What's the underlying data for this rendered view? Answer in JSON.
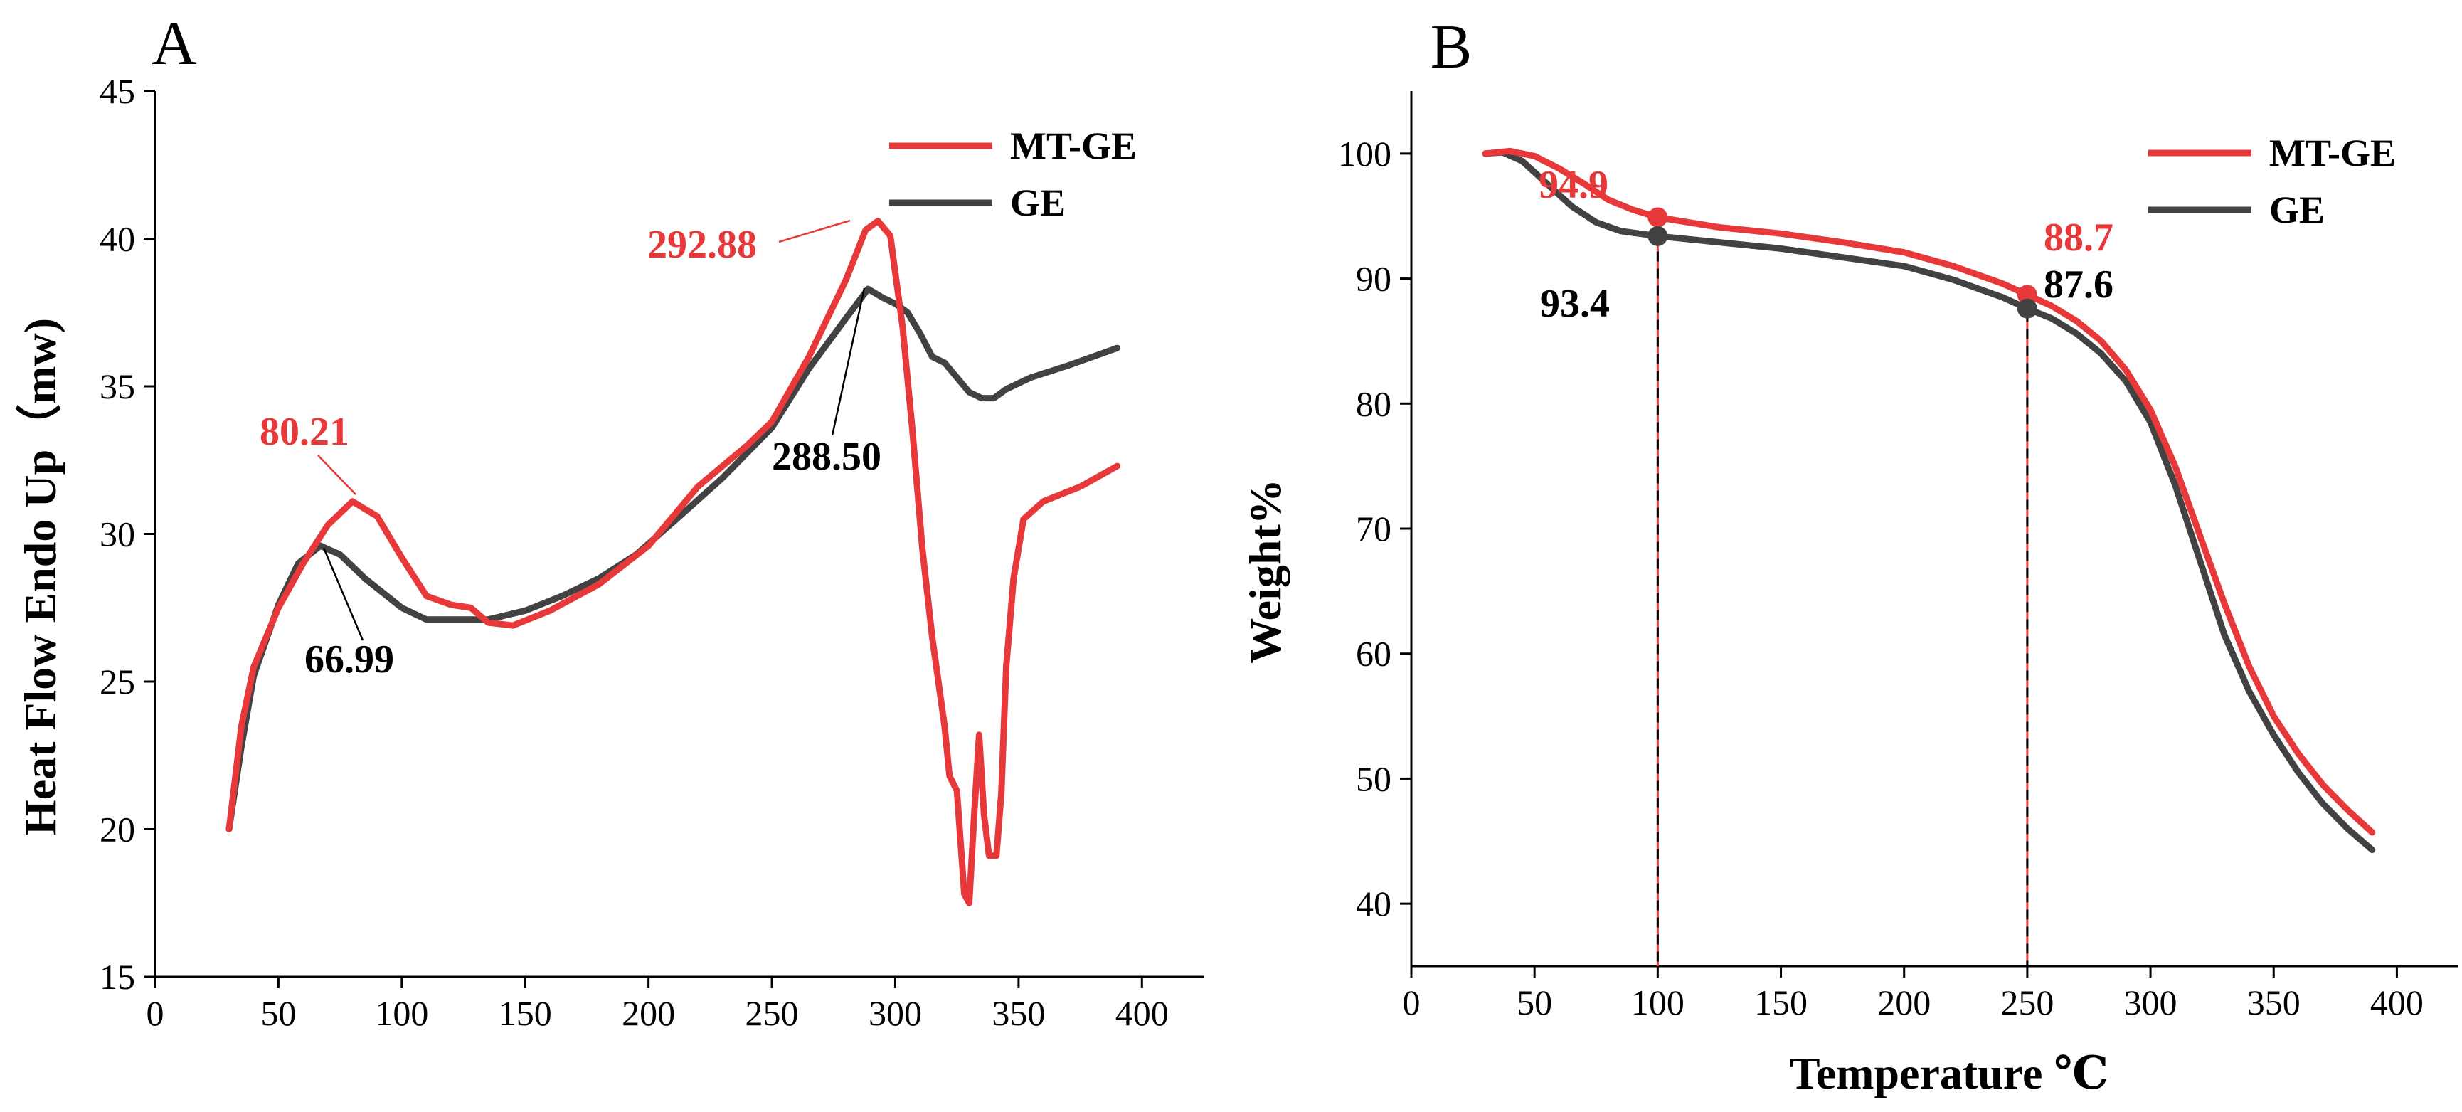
{
  "chart_data": [
    {
      "type": "line",
      "panel": "A",
      "ylabel": "Heat Flow Endo Up（mw)",
      "xlabel": "",
      "xlim": [
        0,
        425
      ],
      "ylim": [
        15,
        45
      ],
      "xticks": [
        0,
        50,
        100,
        150,
        200,
        250,
        300,
        350,
        400
      ],
      "yticks": [
        15,
        20,
        25,
        30,
        35,
        40,
        45
      ],
      "legend_placement": "top-right",
      "series": [
        {
          "name": "MT-GE",
          "color": "#e8393a",
          "points": [
            [
              30,
              20
            ],
            [
              35,
              23.5
            ],
            [
              40,
              25.5
            ],
            [
              50,
              27.5
            ],
            [
              60,
              29
            ],
            [
              70,
              30.3
            ],
            [
              80,
              31.1
            ],
            [
              90,
              30.6
            ],
            [
              100,
              29.2
            ],
            [
              110,
              27.9
            ],
            [
              120,
              27.6
            ],
            [
              128,
              27.5
            ],
            [
              135,
              27.0
            ],
            [
              145,
              26.9
            ],
            [
              160,
              27.4
            ],
            [
              180,
              28.3
            ],
            [
              200,
              29.6
            ],
            [
              220,
              31.6
            ],
            [
              240,
              33.0
            ],
            [
              250,
              33.8
            ],
            [
              265,
              36.0
            ],
            [
              280,
              38.6
            ],
            [
              288,
              40.3
            ],
            [
              293,
              40.6
            ],
            [
              298,
              40.1
            ],
            [
              303,
              37.0
            ],
            [
              307,
              33.5
            ],
            [
              311,
              29.5
            ],
            [
              315,
              26.5
            ],
            [
              320,
              23.5
            ],
            [
              322,
              21.8
            ],
            [
              325,
              21.3
            ],
            [
              328,
              17.8
            ],
            [
              330,
              17.5
            ],
            [
              332,
              20.5
            ],
            [
              334,
              23.2
            ],
            [
              336,
              20.5
            ],
            [
              338,
              19.1
            ],
            [
              341,
              19.1
            ],
            [
              343,
              21.2
            ],
            [
              345,
              25.5
            ],
            [
              348,
              28.5
            ],
            [
              352,
              30.5
            ],
            [
              360,
              31.1
            ],
            [
              375,
              31.6
            ],
            [
              390,
              32.3
            ]
          ]
        },
        {
          "name": "GE",
          "color": "#424242",
          "points": [
            [
              30,
              20
            ],
            [
              35,
              22.8
            ],
            [
              40,
              25.2
            ],
            [
              50,
              27.6
            ],
            [
              58,
              29.0
            ],
            [
              67,
              29.6
            ],
            [
              75,
              29.3
            ],
            [
              85,
              28.5
            ],
            [
              100,
              27.5
            ],
            [
              110,
              27.1
            ],
            [
              120,
              27.1
            ],
            [
              135,
              27.1
            ],
            [
              150,
              27.4
            ],
            [
              165,
              27.9
            ],
            [
              180,
              28.5
            ],
            [
              195,
              29.3
            ],
            [
              210,
              30.4
            ],
            [
              230,
              31.9
            ],
            [
              250,
              33.6
            ],
            [
              265,
              35.6
            ],
            [
              280,
              37.3
            ],
            [
              289,
              38.3
            ],
            [
              295,
              38.0
            ],
            [
              300,
              37.8
            ],
            [
              305,
              37.5
            ],
            [
              310,
              36.8
            ],
            [
              315,
              36.0
            ],
            [
              320,
              35.8
            ],
            [
              325,
              35.3
            ],
            [
              330,
              34.8
            ],
            [
              335,
              34.6
            ],
            [
              340,
              34.6
            ],
            [
              345,
              34.9
            ],
            [
              355,
              35.3
            ],
            [
              370,
              35.7
            ],
            [
              390,
              36.3
            ]
          ]
        }
      ],
      "annotations": [
        {
          "text": "80.21",
          "x": 80.21,
          "y": 31.1,
          "color": "#e8393a"
        },
        {
          "text": "66.99",
          "x": 66.99,
          "y": 29.6,
          "color": "#000000"
        },
        {
          "text": "292.88",
          "x": 292.88,
          "y": 40.6,
          "color": "#e8393a"
        },
        {
          "text": "288.50",
          "x": 288.5,
          "y": 38.3,
          "color": "#000000"
        }
      ]
    },
    {
      "type": "line",
      "panel": "B",
      "ylabel": "Weight%",
      "xlabel": "Temperature ℃",
      "xlim": [
        0,
        425
      ],
      "ylim": [
        35,
        105
      ],
      "xticks": [
        0,
        50,
        100,
        150,
        200,
        250,
        300,
        350,
        400
      ],
      "yticks": [
        40,
        50,
        60,
        70,
        80,
        90,
        100
      ],
      "legend_placement": "top-right",
      "series": [
        {
          "name": "MT-GE",
          "color": "#e8393a",
          "points": [
            [
              30,
              100
            ],
            [
              40,
              100.2
            ],
            [
              50,
              99.8
            ],
            [
              60,
              98.8
            ],
            [
              70,
              97.6
            ],
            [
              80,
              96.3
            ],
            [
              90,
              95.5
            ],
            [
              100,
              94.9
            ],
            [
              125,
              94.1
            ],
            [
              150,
              93.6
            ],
            [
              175,
              92.9
            ],
            [
              200,
              92.1
            ],
            [
              220,
              91.0
            ],
            [
              240,
              89.6
            ],
            [
              250,
              88.7
            ],
            [
              260,
              87.8
            ],
            [
              270,
              86.6
            ],
            [
              280,
              85.0
            ],
            [
              290,
              82.7
            ],
            [
              300,
              79.5
            ],
            [
              310,
              75.0
            ],
            [
              320,
              69.5
            ],
            [
              330,
              64.0
            ],
            [
              340,
              59.0
            ],
            [
              350,
              55.0
            ],
            [
              360,
              52.0
            ],
            [
              370,
              49.5
            ],
            [
              380,
              47.5
            ],
            [
              390,
              45.7
            ]
          ]
        },
        {
          "name": "GE",
          "color": "#424242",
          "points": [
            [
              30,
              100
            ],
            [
              37,
              100.1
            ],
            [
              45,
              99.4
            ],
            [
              55,
              97.6
            ],
            [
              65,
              95.8
            ],
            [
              75,
              94.5
            ],
            [
              85,
              93.8
            ],
            [
              100,
              93.4
            ],
            [
              125,
              92.9
            ],
            [
              150,
              92.4
            ],
            [
              175,
              91.7
            ],
            [
              200,
              91.0
            ],
            [
              220,
              89.9
            ],
            [
              240,
              88.5
            ],
            [
              250,
              87.6
            ],
            [
              260,
              86.8
            ],
            [
              270,
              85.6
            ],
            [
              280,
              84.0
            ],
            [
              290,
              81.8
            ],
            [
              300,
              78.5
            ],
            [
              310,
              73.5
            ],
            [
              320,
              67.5
            ],
            [
              330,
              61.5
            ],
            [
              340,
              57.0
            ],
            [
              350,
              53.5
            ],
            [
              360,
              50.5
            ],
            [
              370,
              48.0
            ],
            [
              380,
              46.0
            ],
            [
              390,
              44.3
            ]
          ]
        }
      ],
      "markers": [
        {
          "x": 100,
          "y": 94.9,
          "color": "#e8393a"
        },
        {
          "x": 100,
          "y": 93.4,
          "color": "#424242"
        },
        {
          "x": 250,
          "y": 88.7,
          "color": "#e8393a"
        },
        {
          "x": 250,
          "y": 87.6,
          "color": "#424242"
        }
      ],
      "vlines": [
        100,
        250
      ],
      "annotations": [
        {
          "text": "94.9",
          "x": 100,
          "y": 94.9,
          "color": "#e8393a"
        },
        {
          "text": "93.4",
          "x": 100,
          "y": 93.4,
          "color": "#000000"
        },
        {
          "text": "88.7",
          "x": 250,
          "y": 88.7,
          "color": "#e8393a"
        },
        {
          "text": "87.6",
          "x": 250,
          "y": 87.6,
          "color": "#000000"
        }
      ]
    }
  ]
}
